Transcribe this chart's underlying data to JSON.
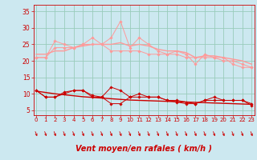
{
  "x": [
    0,
    1,
    2,
    3,
    4,
    5,
    6,
    7,
    8,
    9,
    10,
    11,
    12,
    13,
    14,
    15,
    16,
    17,
    18,
    19,
    20,
    21,
    22,
    23
  ],
  "line_dark_red_1": [
    11,
    9,
    9,
    10.5,
    11,
    11,
    9.5,
    9,
    12,
    11,
    9,
    10,
    9,
    9,
    8,
    8,
    7.5,
    7,
    8,
    9,
    8,
    8,
    8,
    6.5
  ],
  "line_dark_red_2": [
    11,
    9,
    9,
    10,
    11,
    11,
    9,
    9,
    7,
    7,
    9,
    9,
    9,
    9,
    8,
    7.5,
    7,
    7,
    8,
    8,
    8,
    8,
    8,
    7
  ],
  "line_dark_red_trend": [
    10.8,
    10.4,
    10.0,
    9.7,
    9.4,
    9.1,
    8.9,
    8.7,
    8.5,
    8.3,
    8.1,
    8.0,
    7.9,
    7.8,
    7.7,
    7.6,
    7.5,
    7.4,
    7.3,
    7.2,
    7.1,
    7.0,
    6.9,
    6.8
  ],
  "line_pink_1": [
    21,
    21,
    26,
    25,
    24,
    25,
    27,
    25,
    27,
    32,
    24,
    27,
    25,
    23,
    22,
    23,
    22,
    19,
    22,
    21,
    21,
    19,
    18,
    18
  ],
  "line_pink_2": [
    21,
    21,
    24,
    24,
    24,
    25,
    25,
    25,
    23,
    23,
    23,
    23,
    22,
    22,
    22,
    22,
    21,
    21,
    21,
    21,
    20,
    20,
    19,
    18
  ],
  "line_pink_trend": [
    22,
    22,
    23,
    23,
    24,
    24.5,
    25,
    25,
    25,
    25.5,
    24.5,
    25,
    24.5,
    23.5,
    23,
    23,
    22.5,
    21,
    21.5,
    21.5,
    21,
    20.5,
    20,
    19
  ],
  "bg_color": "#cce8f0",
  "grid_color": "#99ccbb",
  "dark_red": "#cc0000",
  "pink": "#ff9999",
  "xlabel": "Vent moyen/en rafales ( km/h )",
  "xlabel_fontsize": 7,
  "yticks": [
    5,
    10,
    15,
    20,
    25,
    30,
    35
  ],
  "xticks": [
    0,
    1,
    2,
    3,
    4,
    5,
    6,
    7,
    8,
    9,
    10,
    11,
    12,
    13,
    14,
    15,
    16,
    17,
    18,
    19,
    20,
    21,
    22,
    23
  ],
  "ylim": [
    3.5,
    37
  ],
  "xlim": [
    -0.3,
    23.3
  ]
}
